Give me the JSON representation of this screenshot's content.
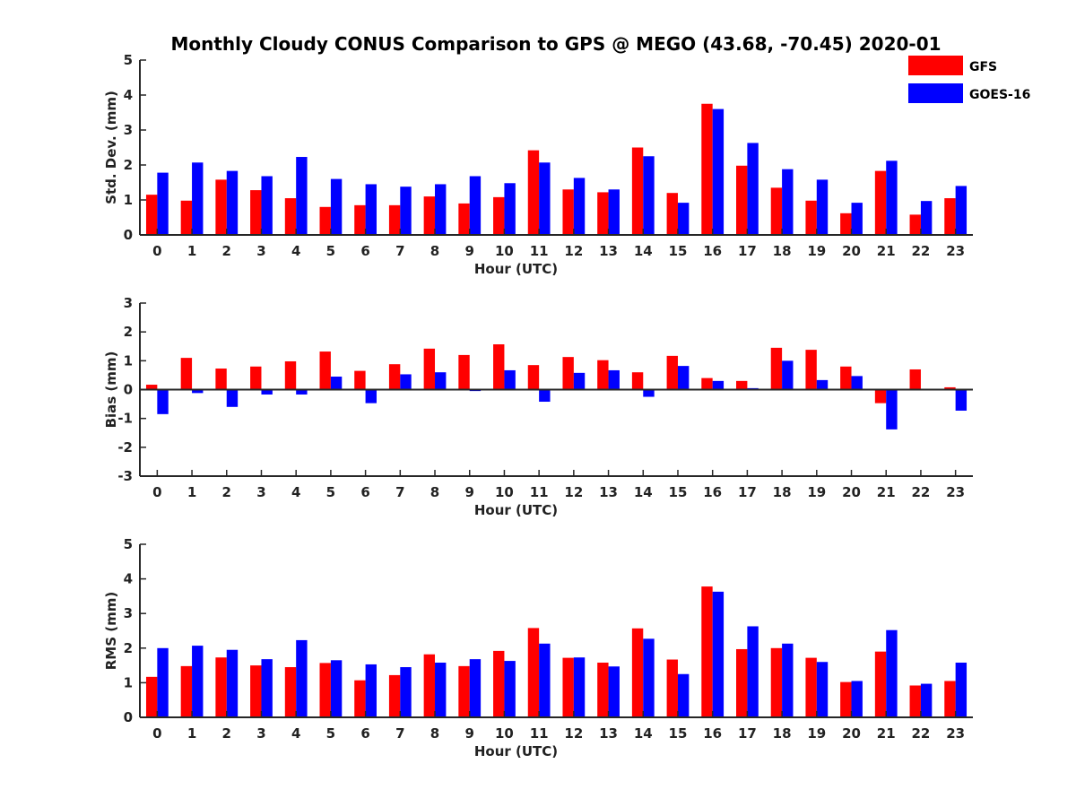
{
  "chart_data": {
    "title": "Monthly Cloudy CONUS Comparison to GPS @ MEGO (43.68, -70.45) 2020-01",
    "legend": {
      "placement": "top-right",
      "entries": [
        {
          "name": "GFS",
          "color": "#ff0000"
        },
        {
          "name": "GOES-16",
          "color": "#0000ff"
        }
      ]
    },
    "panels": [
      {
        "type": "bar",
        "xlabel": "Hour (UTC)",
        "ylabel": "Std. Dev. (mm)",
        "ylim": [
          0,
          5
        ],
        "yticks": [
          "0",
          "1",
          "2",
          "3",
          "4",
          "5"
        ],
        "categories": [
          "0",
          "1",
          "2",
          "3",
          "4",
          "5",
          "6",
          "7",
          "8",
          "9",
          "10",
          "11",
          "12",
          "13",
          "14",
          "15",
          "16",
          "17",
          "18",
          "19",
          "20",
          "21",
          "22",
          "23"
        ],
        "series": [
          {
            "name": "GFS",
            "color": "#ff0000",
            "values": [
              1.15,
              0.98,
              1.58,
              1.28,
              1.05,
              0.8,
              0.85,
              0.85,
              1.1,
              0.9,
              1.08,
              2.42,
              1.3,
              1.22,
              2.5,
              1.2,
              3.75,
              1.98,
              1.35,
              0.98,
              0.62,
              1.83,
              0.58,
              1.05
            ]
          },
          {
            "name": "GOES-16",
            "color": "#0000ff",
            "values": [
              1.78,
              2.07,
              1.83,
              1.68,
              2.23,
              1.6,
              1.45,
              1.38,
              1.45,
              1.68,
              1.48,
              2.07,
              1.63,
              1.3,
              2.25,
              0.92,
              3.6,
              2.63,
              1.88,
              1.58,
              0.92,
              2.12,
              0.97,
              1.4
            ]
          }
        ]
      },
      {
        "type": "bar",
        "xlabel": "Hour (UTC)",
        "ylabel": "Bias (mm)",
        "ylim": [
          -3,
          3
        ],
        "yticks": [
          "-3",
          "-2",
          "-1",
          "0",
          "1",
          "2",
          "3"
        ],
        "categories": [
          "0",
          "1",
          "2",
          "3",
          "4",
          "5",
          "6",
          "7",
          "8",
          "9",
          "10",
          "11",
          "12",
          "13",
          "14",
          "15",
          "16",
          "17",
          "18",
          "19",
          "20",
          "21",
          "22",
          "23"
        ],
        "series": [
          {
            "name": "GFS",
            "color": "#ff0000",
            "values": [
              0.17,
              1.1,
              0.73,
              0.8,
              0.98,
              1.32,
              0.65,
              0.88,
              1.42,
              1.2,
              1.57,
              0.85,
              1.13,
              1.02,
              0.6,
              1.17,
              0.4,
              0.3,
              1.45,
              1.38,
              0.8,
              -0.47,
              0.7,
              0.08
            ]
          },
          {
            "name": "GOES-16",
            "color": "#0000ff",
            "values": [
              -0.85,
              -0.12,
              -0.6,
              -0.17,
              -0.17,
              0.45,
              -0.47,
              0.53,
              0.6,
              -0.05,
              0.67,
              -0.42,
              0.58,
              0.67,
              -0.25,
              0.82,
              0.3,
              0.05,
              1.0,
              0.33,
              0.47,
              -1.38,
              0.0,
              -0.73
            ]
          }
        ]
      },
      {
        "type": "bar",
        "xlabel": "Hour (UTC)",
        "ylabel": "RMS (mm)",
        "ylim": [
          0,
          5
        ],
        "yticks": [
          "0",
          "1",
          "2",
          "3",
          "4",
          "5"
        ],
        "categories": [
          "0",
          "1",
          "2",
          "3",
          "4",
          "5",
          "6",
          "7",
          "8",
          "9",
          "10",
          "11",
          "12",
          "13",
          "14",
          "15",
          "16",
          "17",
          "18",
          "19",
          "20",
          "21",
          "22",
          "23"
        ],
        "series": [
          {
            "name": "GFS",
            "color": "#ff0000",
            "values": [
              1.17,
              1.48,
              1.73,
              1.5,
              1.45,
              1.57,
              1.07,
              1.22,
              1.82,
              1.48,
              1.92,
              2.58,
              1.72,
              1.58,
              2.57,
              1.67,
              3.78,
              1.97,
              2.0,
              1.72,
              1.02,
              1.9,
              0.92,
              1.05
            ]
          },
          {
            "name": "GOES-16",
            "color": "#0000ff",
            "values": [
              2.0,
              2.07,
              1.95,
              1.68,
              2.23,
              1.65,
              1.53,
              1.45,
              1.58,
              1.68,
              1.63,
              2.13,
              1.73,
              1.47,
              2.27,
              1.25,
              3.63,
              2.63,
              2.13,
              1.6,
              1.05,
              2.52,
              0.97,
              1.58
            ]
          }
        ]
      }
    ]
  }
}
